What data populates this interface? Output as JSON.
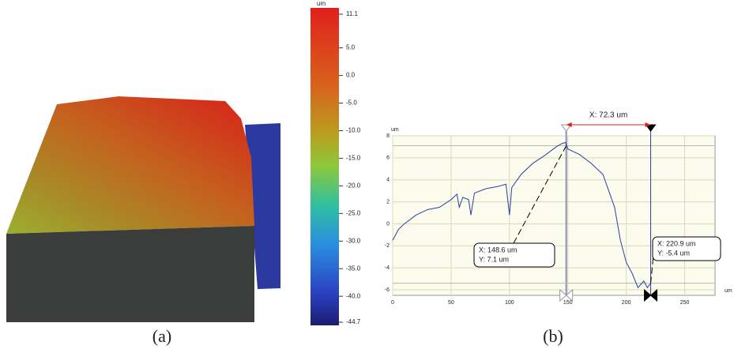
{
  "colorbar": {
    "unit": "um",
    "lim": [
      -44.7,
      11.1
    ],
    "ticks": [
      11.1,
      {
        "value": 5,
        "label": "5.0"
      },
      {
        "value": 0,
        "label": "0.0"
      },
      {
        "value": -5,
        "label": "-5.0"
      },
      {
        "value": -10,
        "label": "-10.0"
      },
      {
        "value": -15,
        "label": "-15.0"
      },
      {
        "value": -20,
        "label": "-20.0"
      },
      {
        "value": -25,
        "label": "-25.0"
      },
      {
        "value": -30,
        "label": "-30.0"
      },
      {
        "value": -35,
        "label": "-35.0"
      },
      {
        "value": -40,
        "label": "-40.0"
      },
      -44.7
    ]
  },
  "captions": [
    "(a)",
    "(b)"
  ],
  "chart_data": {
    "type": "line",
    "xlabel": "um",
    "ylabel": "um",
    "x": [
      0,
      5,
      10,
      20,
      30,
      40,
      50,
      55,
      57,
      60,
      65,
      67,
      70,
      80,
      90,
      97,
      100,
      102,
      110,
      120,
      130,
      140,
      145,
      148,
      150,
      160,
      170,
      180,
      185,
      190,
      195,
      200,
      205,
      210,
      215,
      218,
      221
    ],
    "values": [
      -1.5,
      -0.5,
      0,
      0.8,
      1.3,
      1.5,
      2.2,
      2.7,
      1.5,
      2.4,
      2.2,
      0.8,
      2.8,
      3.2,
      3.4,
      3.6,
      0.8,
      3.3,
      4.5,
      5.5,
      6.2,
      7.0,
      7.3,
      7.4,
      6.8,
      6.3,
      5.5,
      4.5,
      3.0,
      1.5,
      -1.5,
      -3.5,
      -4.5,
      -5.8,
      -5.2,
      -5.8,
      -5.4
    ],
    "color": "#2a3fa8",
    "xlim": [
      0,
      276
    ],
    "ylim": [
      -6.5,
      8
    ],
    "xticks": [
      0,
      50,
      100,
      150,
      200,
      250
    ],
    "yticks": [
      8,
      6,
      4,
      2,
      0,
      -2,
      -4,
      -6
    ],
    "grid": true,
    "cursors": [
      {
        "x": 148.6,
        "y": 7.1,
        "label_x": "X: 148.6 um",
        "label_y": "Y: 7.1 um"
      },
      {
        "x": 220.9,
        "y": -5.4,
        "label_x": "X: 220.9 um",
        "label_y": "Y: -5.4 um"
      }
    ],
    "delta": {
      "value": 72.3,
      "label": "X: 72.3 um"
    }
  }
}
